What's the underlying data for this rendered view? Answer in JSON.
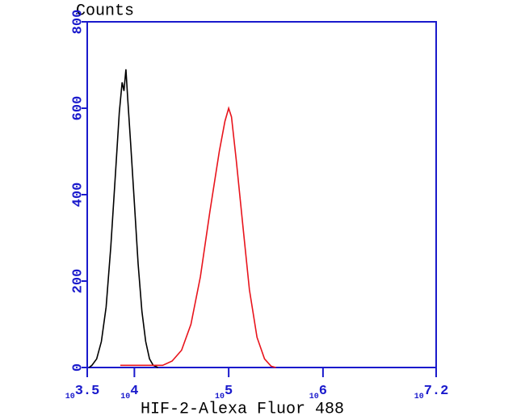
{
  "chart_data": {
    "type": "line",
    "y_title": "Counts",
    "x_title": "HIF-2-Alexa Fluor 488",
    "xscale": "log",
    "axis_color": "#1a1acc",
    "xlim": [
      3162.2777,
      15848931.92
    ],
    "ylim": [
      0,
      800
    ],
    "xticks": [
      {
        "value": 3162.2777,
        "label": "10",
        "exponent": "3.5"
      },
      {
        "value": 10000,
        "label": "10",
        "exponent": "4"
      },
      {
        "value": 100000,
        "label": "10",
        "exponent": "5"
      },
      {
        "value": 1000000,
        "label": "10",
        "exponent": "6"
      },
      {
        "value": 15848931.92,
        "label": "10",
        "exponent": "7.2"
      }
    ],
    "yticks": [
      0,
      200,
      400,
      600,
      800
    ],
    "series": [
      {
        "color": "#000000",
        "x": [
          3311,
          3548,
          3981,
          4467,
          5012,
          5623,
          6310,
          6918,
          7413,
          7762,
          8128,
          8511,
          9120,
          10000,
          10965,
          12023,
          13183,
          14454,
          15849,
          17783
        ],
        "values": [
          0,
          5,
          20,
          60,
          140,
          280,
          450,
          590,
          660,
          640,
          690,
          620,
          520,
          380,
          240,
          130,
          60,
          20,
          5,
          0
        ]
      },
      {
        "color": "#e8141c",
        "x": [
          7079,
          12589,
          19953,
          25119,
          31623,
          39811,
          50119,
          63096,
          79433,
          91201,
          100000,
          107152,
          120226,
          141254,
          165959,
          199526,
          239883,
          281838,
          316228
        ],
        "values": [
          5,
          5,
          5,
          15,
          40,
          100,
          210,
          360,
          500,
          570,
          600,
          580,
          480,
          330,
          180,
          70,
          20,
          3,
          0
        ]
      }
    ]
  }
}
